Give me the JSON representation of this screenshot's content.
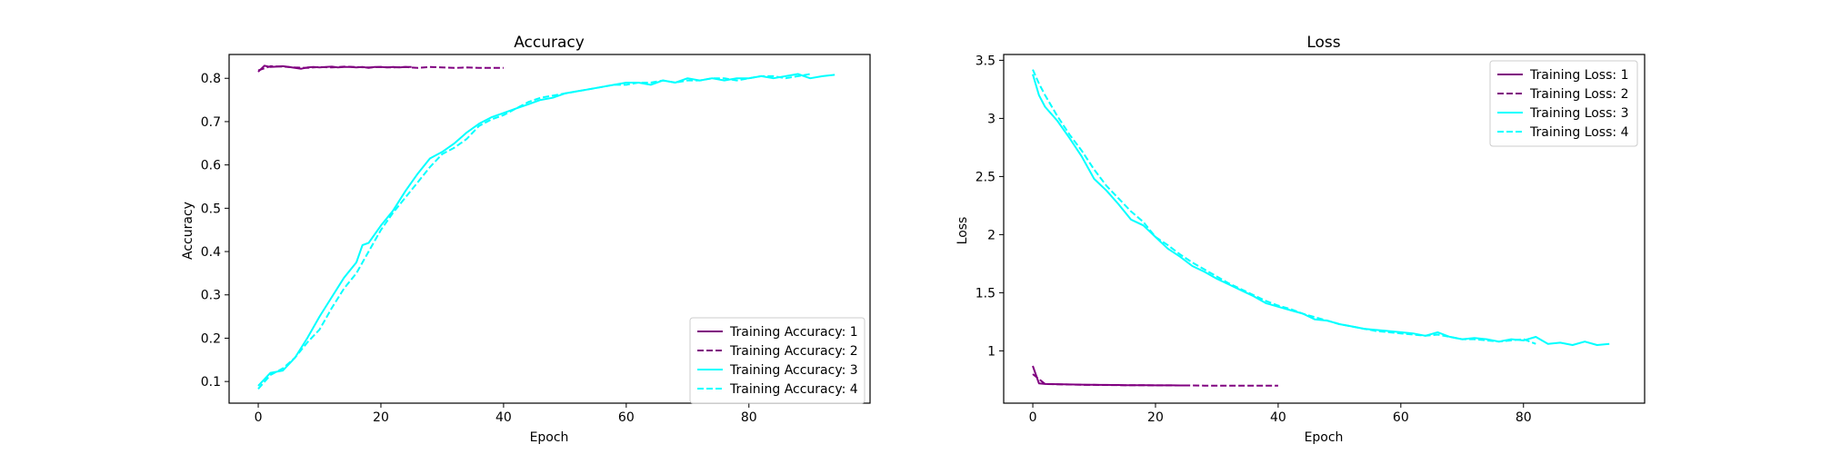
{
  "chart_data": [
    {
      "type": "line",
      "title": "Accuracy",
      "xlabel": "Epoch",
      "ylabel": "Accuracy",
      "xlim": [
        -4.75,
        99.75
      ],
      "ylim": [
        0.05,
        0.855
      ],
      "xticks": [
        0,
        20,
        40,
        60,
        80
      ],
      "yticks": [
        0.1,
        0.2,
        0.3,
        0.4,
        0.5,
        0.6,
        0.7,
        0.8
      ],
      "grid": false,
      "legend": "lower-right",
      "series": [
        {
          "name": "Training Accuracy: 1",
          "color": "#800080",
          "dash": "solid",
          "x": [
            0,
            1,
            2,
            3,
            4,
            5,
            6,
            7,
            8,
            9,
            10,
            11,
            12,
            13,
            14,
            15,
            16,
            17,
            18,
            19,
            20,
            21,
            22,
            23,
            24,
            25
          ],
          "y": [
            0.815,
            0.829,
            0.826,
            0.827,
            0.828,
            0.826,
            0.824,
            0.822,
            0.825,
            0.826,
            0.825,
            0.826,
            0.827,
            0.825,
            0.826,
            0.826,
            0.825,
            0.826,
            0.824,
            0.826,
            0.826,
            0.825,
            0.826,
            0.825,
            0.826,
            0.826
          ]
        },
        {
          "name": "Training Accuracy: 2",
          "color": "#800080",
          "dash": "dashed",
          "x": [
            0,
            2,
            4,
            6,
            8,
            10,
            12,
            14,
            16,
            18,
            20,
            22,
            24,
            26,
            28,
            30,
            32,
            34,
            36,
            38,
            40
          ],
          "y": [
            0.818,
            0.828,
            0.827,
            0.825,
            0.824,
            0.826,
            0.825,
            0.827,
            0.826,
            0.825,
            0.826,
            0.825,
            0.826,
            0.824,
            0.826,
            0.825,
            0.824,
            0.825,
            0.824,
            0.824,
            0.824
          ]
        },
        {
          "name": "Training Accuracy: 3",
          "color": "#00ffff",
          "dash": "solid",
          "x": [
            0,
            2,
            4,
            6,
            8,
            10,
            12,
            14,
            16,
            17,
            18,
            20,
            22,
            24,
            26,
            28,
            30,
            32,
            34,
            36,
            38,
            40,
            42,
            44,
            46,
            48,
            50,
            52,
            54,
            56,
            58,
            60,
            62,
            64,
            66,
            68,
            70,
            72,
            74,
            76,
            78,
            80,
            82,
            84,
            86,
            88,
            90,
            92,
            94
          ],
          "y": [
            0.09,
            0.12,
            0.125,
            0.155,
            0.2,
            0.25,
            0.295,
            0.34,
            0.375,
            0.415,
            0.42,
            0.46,
            0.495,
            0.54,
            0.58,
            0.615,
            0.63,
            0.65,
            0.675,
            0.695,
            0.71,
            0.72,
            0.73,
            0.74,
            0.75,
            0.755,
            0.765,
            0.77,
            0.775,
            0.78,
            0.785,
            0.79,
            0.79,
            0.785,
            0.795,
            0.79,
            0.8,
            0.795,
            0.8,
            0.795,
            0.8,
            0.8,
            0.805,
            0.8,
            0.805,
            0.81,
            0.8,
            0.805,
            0.808
          ]
        },
        {
          "name": "Training Accuracy: 4",
          "color": "#00ffff",
          "dash": "dashed",
          "x": [
            0,
            2,
            4,
            6,
            8,
            10,
            12,
            14,
            16,
            18,
            20,
            22,
            24,
            26,
            28,
            30,
            32,
            34,
            36,
            38,
            40,
            42,
            44,
            46,
            48,
            50,
            52,
            54,
            56,
            58,
            60,
            62,
            64,
            66,
            68,
            70,
            72,
            74,
            76,
            78,
            80,
            82,
            84,
            86,
            88,
            90
          ],
          "y": [
            0.083,
            0.115,
            0.13,
            0.155,
            0.19,
            0.22,
            0.27,
            0.315,
            0.35,
            0.4,
            0.45,
            0.49,
            0.525,
            0.56,
            0.595,
            0.625,
            0.64,
            0.66,
            0.69,
            0.705,
            0.715,
            0.73,
            0.745,
            0.755,
            0.76,
            0.765,
            0.77,
            0.775,
            0.78,
            0.785,
            0.785,
            0.79,
            0.79,
            0.795,
            0.79,
            0.795,
            0.795,
            0.8,
            0.8,
            0.795,
            0.8,
            0.805,
            0.805,
            0.8,
            0.805,
            0.81
          ]
        }
      ]
    },
    {
      "type": "line",
      "title": "Loss",
      "xlabel": "Epoch",
      "ylabel": "Loss",
      "xlim": [
        -4.75,
        99.75
      ],
      "ylim": [
        0.55,
        3.55
      ],
      "xticks": [
        0,
        20,
        40,
        60,
        80
      ],
      "yticks": [
        1.0,
        1.5,
        2.0,
        2.5,
        3.0,
        3.5
      ],
      "grid": false,
      "legend": "upper-right",
      "series": [
        {
          "name": "Training Loss: 1",
          "color": "#800080",
          "dash": "solid",
          "x": [
            0,
            1,
            2,
            3,
            4,
            5,
            6,
            7,
            8,
            9,
            10,
            11,
            12,
            13,
            14,
            15,
            16,
            17,
            18,
            19,
            20,
            21,
            22,
            23,
            24,
            25
          ],
          "y": [
            0.87,
            0.72,
            0.715,
            0.714,
            0.713,
            0.712,
            0.711,
            0.71,
            0.709,
            0.708,
            0.708,
            0.707,
            0.707,
            0.706,
            0.706,
            0.705,
            0.705,
            0.705,
            0.704,
            0.704,
            0.703,
            0.703,
            0.703,
            0.703,
            0.702,
            0.702
          ]
        },
        {
          "name": "Training Loss: 2",
          "color": "#800080",
          "dash": "dashed",
          "x": [
            0,
            2,
            4,
            6,
            8,
            10,
            12,
            14,
            16,
            18,
            20,
            22,
            24,
            26,
            28,
            30,
            32,
            34,
            36,
            38,
            40
          ],
          "y": [
            0.8,
            0.715,
            0.712,
            0.71,
            0.708,
            0.707,
            0.706,
            0.705,
            0.704,
            0.704,
            0.703,
            0.703,
            0.702,
            0.702,
            0.701,
            0.701,
            0.701,
            0.7,
            0.7,
            0.7,
            0.7
          ]
        },
        {
          "name": "Training Loss: 3",
          "color": "#00ffff",
          "dash": "solid",
          "x": [
            0,
            1,
            2,
            4,
            6,
            8,
            10,
            12,
            14,
            16,
            18,
            20,
            22,
            24,
            26,
            28,
            30,
            32,
            34,
            36,
            38,
            40,
            42,
            44,
            46,
            48,
            50,
            52,
            54,
            56,
            58,
            60,
            62,
            64,
            66,
            68,
            70,
            72,
            74,
            76,
            78,
            80,
            82,
            84,
            86,
            88,
            90,
            92,
            94
          ],
          "y": [
            3.38,
            3.2,
            3.1,
            2.98,
            2.83,
            2.67,
            2.48,
            2.38,
            2.26,
            2.13,
            2.08,
            1.98,
            1.88,
            1.81,
            1.73,
            1.68,
            1.62,
            1.57,
            1.52,
            1.47,
            1.41,
            1.38,
            1.35,
            1.32,
            1.27,
            1.26,
            1.23,
            1.21,
            1.19,
            1.18,
            1.17,
            1.16,
            1.15,
            1.13,
            1.16,
            1.12,
            1.1,
            1.11,
            1.1,
            1.08,
            1.1,
            1.09,
            1.12,
            1.06,
            1.07,
            1.05,
            1.08,
            1.05,
            1.06
          ]
        },
        {
          "name": "Training Loss: 4",
          "color": "#00ffff",
          "dash": "dashed",
          "x": [
            0,
            1,
            2,
            4,
            6,
            8,
            10,
            12,
            14,
            16,
            18,
            20,
            22,
            24,
            26,
            28,
            30,
            32,
            34,
            36,
            38,
            40,
            42,
            44,
            46,
            48,
            50,
            52,
            54,
            56,
            58,
            60,
            62,
            64,
            66,
            68,
            70,
            72,
            74,
            76,
            78,
            80,
            82
          ],
          "y": [
            3.42,
            3.3,
            3.2,
            3.02,
            2.86,
            2.72,
            2.56,
            2.42,
            2.31,
            2.2,
            2.11,
            1.98,
            1.91,
            1.83,
            1.76,
            1.7,
            1.64,
            1.58,
            1.53,
            1.48,
            1.43,
            1.39,
            1.36,
            1.32,
            1.29,
            1.26,
            1.23,
            1.21,
            1.19,
            1.17,
            1.16,
            1.15,
            1.14,
            1.13,
            1.14,
            1.12,
            1.1,
            1.1,
            1.09,
            1.08,
            1.09,
            1.1,
            1.06
          ]
        }
      ]
    }
  ]
}
